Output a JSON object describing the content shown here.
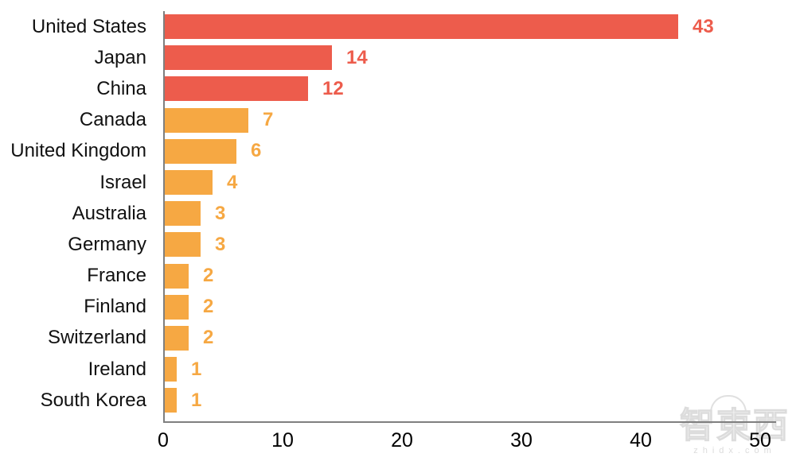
{
  "chart_data": {
    "type": "bar",
    "orientation": "horizontal",
    "title": "",
    "categories": [
      "United States",
      "Japan",
      "China",
      "Canada",
      "United Kingdom",
      "Israel",
      "Australia",
      "Germany",
      "France",
      "Finland",
      "Switzerland",
      "Ireland",
      "South Korea"
    ],
    "values": [
      43,
      14,
      12,
      7,
      6,
      4,
      3,
      3,
      2,
      2,
      2,
      1,
      1
    ],
    "bar_colors": [
      "#ED5C4C",
      "#ED5C4C",
      "#ED5C4C",
      "#F6A843",
      "#F6A843",
      "#F6A843",
      "#F6A843",
      "#F6A843",
      "#F6A843",
      "#F6A843",
      "#F6A843",
      "#F6A843",
      "#F6A843"
    ],
    "x_ticks": [
      "0",
      "10",
      "20",
      "30",
      "40",
      "50"
    ],
    "xlim": [
      0,
      50
    ],
    "grid": false,
    "legend": null,
    "xlabel": "",
    "ylabel": ""
  },
  "colors": {
    "highlight": "#ED5C4C",
    "default": "#F6A843",
    "axis": "#7f7f7f",
    "label_text": "#111111",
    "tick_text": "#000000",
    "watermark": "#dcdcdc"
  },
  "watermark": {
    "logo_text": "智東西",
    "url_text": "zhidx.com"
  }
}
